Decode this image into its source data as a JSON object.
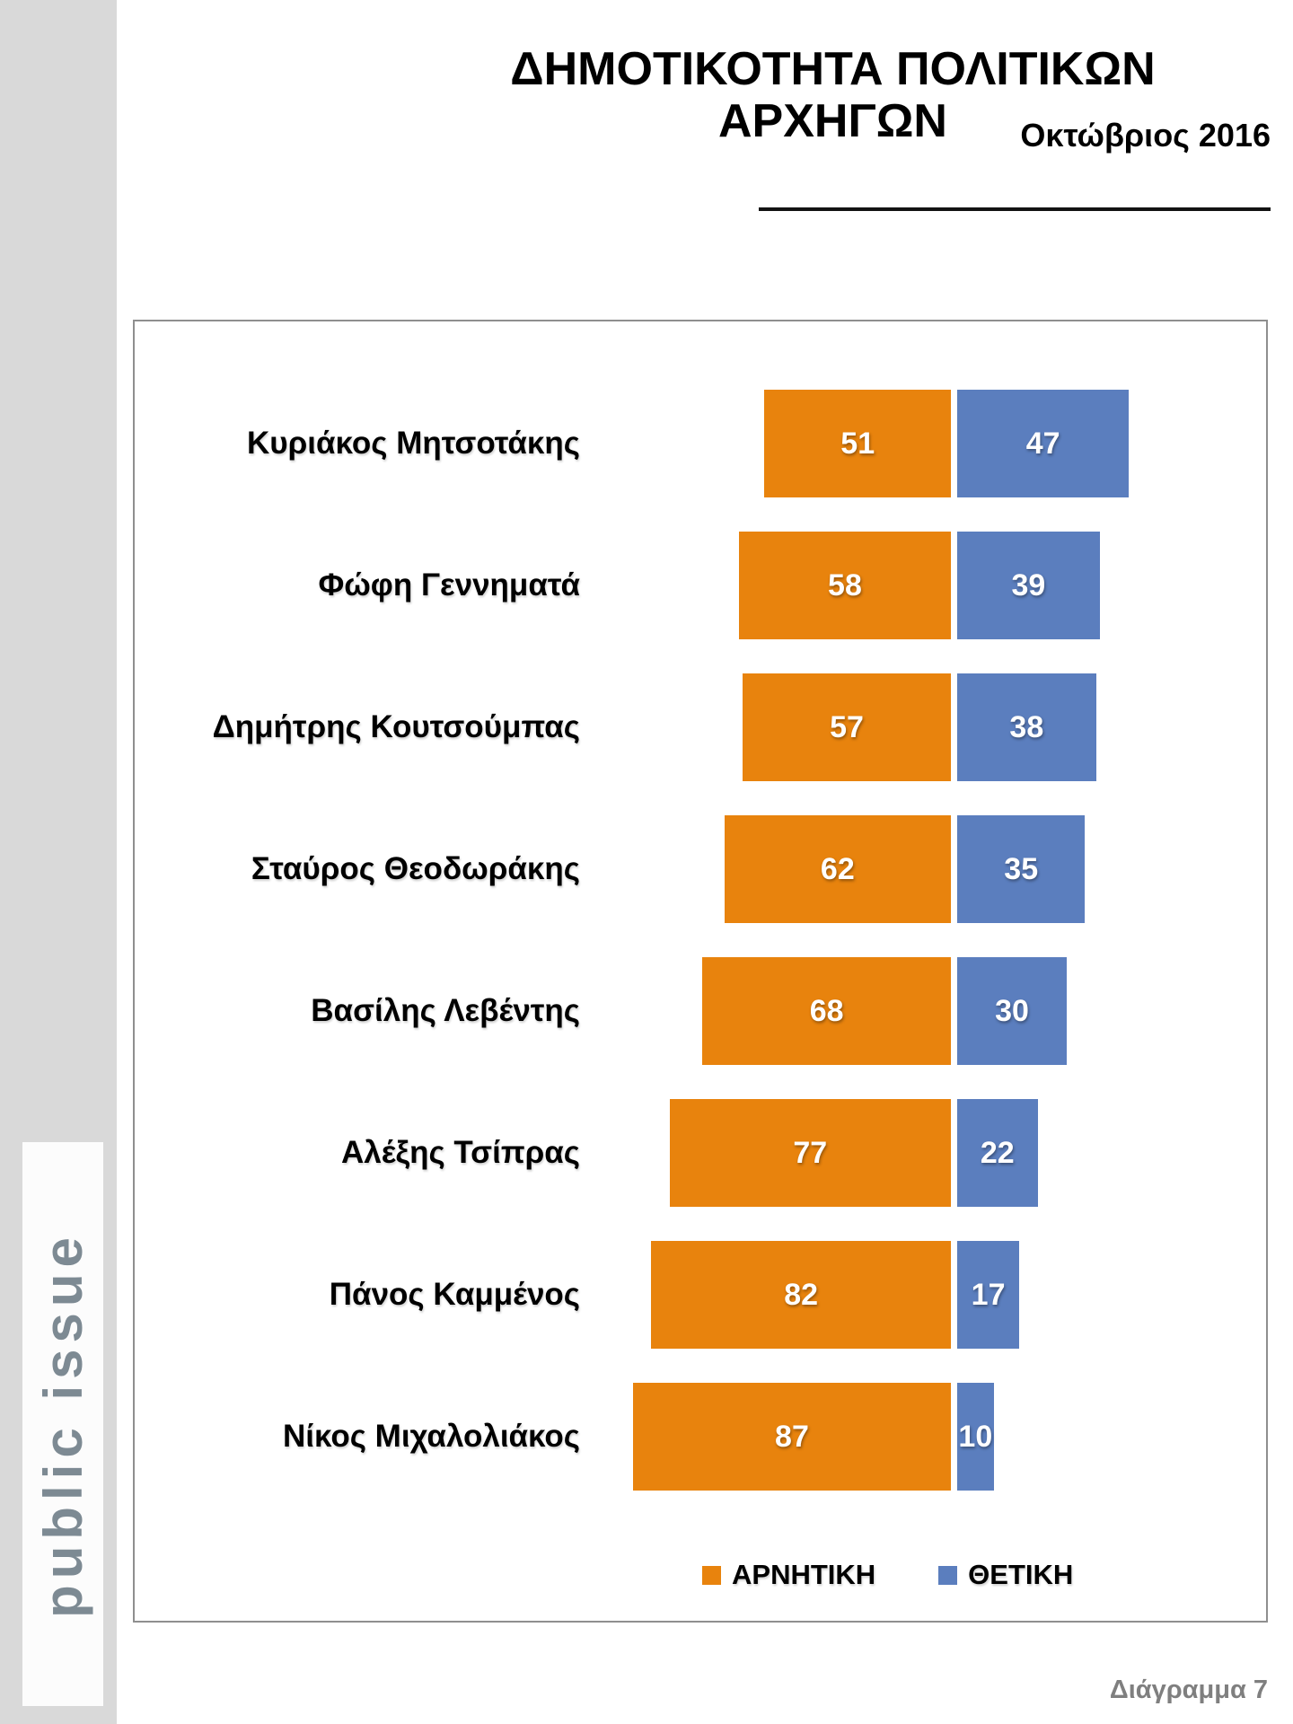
{
  "header": {
    "title": "ΔΗΜΟΤΙΚΟΤΗΤΑ ΠΟΛΙΤΙΚΩΝ ΑΡΧΗΓΩΝ",
    "subtitle": "Οκτώβριος 2016"
  },
  "logo": {
    "text": "public issue"
  },
  "footer": {
    "caption": "Διάγραμμα 7"
  },
  "colors": {
    "negative": "#e8830d",
    "positive": "#5b7ebe",
    "side_strip": "#d9d9d9",
    "panel_border": "#8f8f8f",
    "caption_gray": "#7f7f7f"
  },
  "chart_data": {
    "type": "bar",
    "orientation": "horizontal-diverging",
    "title": "ΔΗΜΟΤΙΚΟΤΗΤΑ ΠΟΛΙΤΙΚΩΝ ΑΡΧΗΓΩΝ",
    "subtitle": "Οκτώβριος 2016",
    "categories": [
      "Κυριάκος Μητσοτάκης",
      "Φώφη Γεννηματά",
      "Δημήτρης Κουτσούμπας",
      "Σταύρος Θεοδωράκης",
      "Βασίλης Λεβέντης",
      "Αλέξης Τσίπρας",
      "Πάνος Καμμένος",
      "Νίκος Μιχαλολιάκος"
    ],
    "series": [
      {
        "name": "ΑΡΝΗΤΙΚΗ",
        "color": "#e8830d",
        "values": [
          51,
          58,
          57,
          62,
          68,
          77,
          82,
          87
        ]
      },
      {
        "name": "ΘΕΤΙΚΗ",
        "color": "#5b7ebe",
        "values": [
          47,
          39,
          38,
          35,
          30,
          22,
          17,
          10
        ]
      }
    ],
    "value_labels": true,
    "legend_position": "bottom",
    "axis_range_per_side": [
      0,
      100
    ],
    "grid": false
  }
}
